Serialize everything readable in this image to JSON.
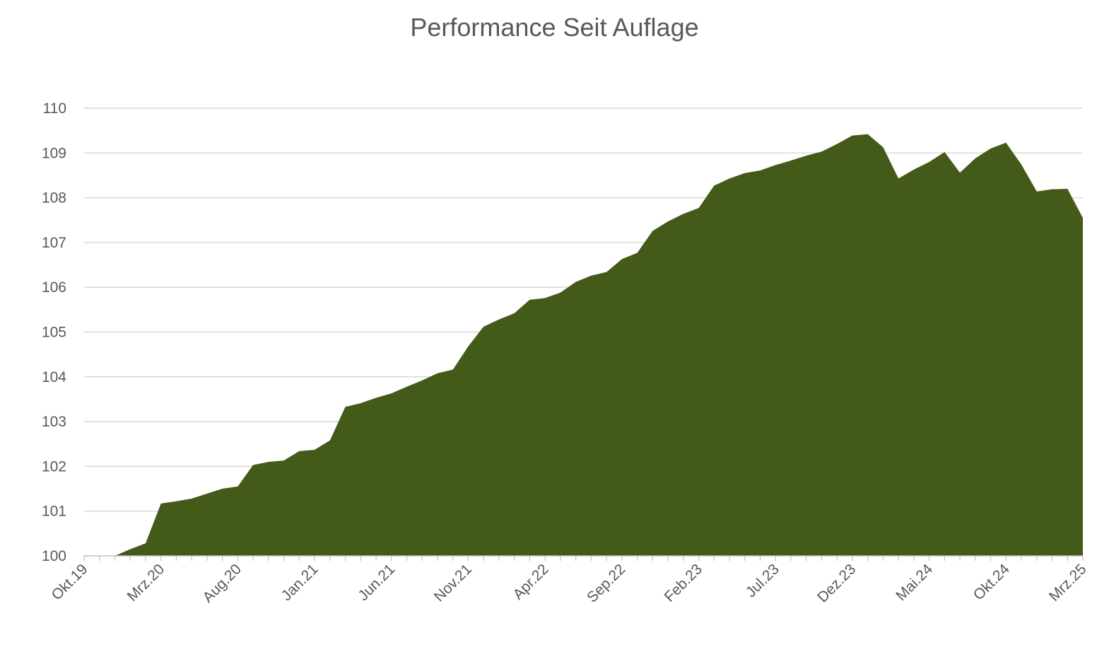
{
  "colors": {
    "area_fill": "#445a19",
    "gridline": "#d9d9d9",
    "axis_line": "#bfbfbf",
    "text": "#595959",
    "background": "#ffffff"
  },
  "chart_data": {
    "type": "area",
    "title": "Performance Seit Auflage",
    "xlabel": "",
    "ylabel": "",
    "ylim": [
      100,
      110
    ],
    "yticks": [
      100,
      101,
      102,
      103,
      104,
      105,
      106,
      107,
      108,
      109,
      110
    ],
    "grid": true,
    "legend": "none",
    "x": [
      "2019-10",
      "2019-11",
      "2019-12",
      "2020-01",
      "2020-02",
      "2020-03",
      "2020-04",
      "2020-05",
      "2020-06",
      "2020-07",
      "2020-08",
      "2020-09",
      "2020-10",
      "2020-11",
      "2020-12",
      "2021-01",
      "2021-02",
      "2021-03",
      "2021-04",
      "2021-05",
      "2021-06",
      "2021-07",
      "2021-08",
      "2021-09",
      "2021-10",
      "2021-11",
      "2021-12",
      "2022-01",
      "2022-02",
      "2022-03",
      "2022-04",
      "2022-05",
      "2022-06",
      "2022-07",
      "2022-08",
      "2022-09",
      "2022-10",
      "2022-11",
      "2022-12",
      "2023-01",
      "2023-02",
      "2023-03",
      "2023-04",
      "2023-05",
      "2023-06",
      "2023-07",
      "2023-08",
      "2023-09",
      "2023-10",
      "2023-11",
      "2023-12",
      "2024-01",
      "2024-02",
      "2024-03",
      "2024-04",
      "2024-05",
      "2024-06",
      "2024-07",
      "2024-08",
      "2024-09",
      "2024-10",
      "2024-11",
      "2024-12",
      "2025-01",
      "2025-02",
      "2025-03"
    ],
    "xtick_labels": [
      {
        "index": 0,
        "label": "Okt.19"
      },
      {
        "index": 5,
        "label": "Mrz.20"
      },
      {
        "index": 10,
        "label": "Aug.20"
      },
      {
        "index": 15,
        "label": "Jan.21"
      },
      {
        "index": 20,
        "label": "Jun.21"
      },
      {
        "index": 25,
        "label": "Nov.21"
      },
      {
        "index": 30,
        "label": "Apr.22"
      },
      {
        "index": 35,
        "label": "Sep.22"
      },
      {
        "index": 40,
        "label": "Feb.23"
      },
      {
        "index": 45,
        "label": "Jul.23"
      },
      {
        "index": 50,
        "label": "Dez.23"
      },
      {
        "index": 55,
        "label": "Mai.24"
      },
      {
        "index": 60,
        "label": "Okt.24"
      },
      {
        "index": 65,
        "label": "Mrz.25"
      }
    ],
    "values": [
      null,
      null,
      100.0,
      100.15,
      100.28,
      101.17,
      101.22,
      101.28,
      101.39,
      101.5,
      101.55,
      102.03,
      102.1,
      102.13,
      102.34,
      102.37,
      102.58,
      103.33,
      103.41,
      103.53,
      103.63,
      103.78,
      103.92,
      104.08,
      104.16,
      104.68,
      105.12,
      105.28,
      105.42,
      105.72,
      105.76,
      105.88,
      106.12,
      106.26,
      106.34,
      106.63,
      106.77,
      107.26,
      107.47,
      107.64,
      107.77,
      108.27,
      108.43,
      108.55,
      108.61,
      108.73,
      108.83,
      108.94,
      109.03,
      109.2,
      109.39,
      109.42,
      109.13,
      108.43,
      108.63,
      108.8,
      109.02,
      108.56,
      108.88,
      109.1,
      109.23,
      108.74,
      108.14,
      108.19,
      108.2,
      107.55
    ]
  }
}
